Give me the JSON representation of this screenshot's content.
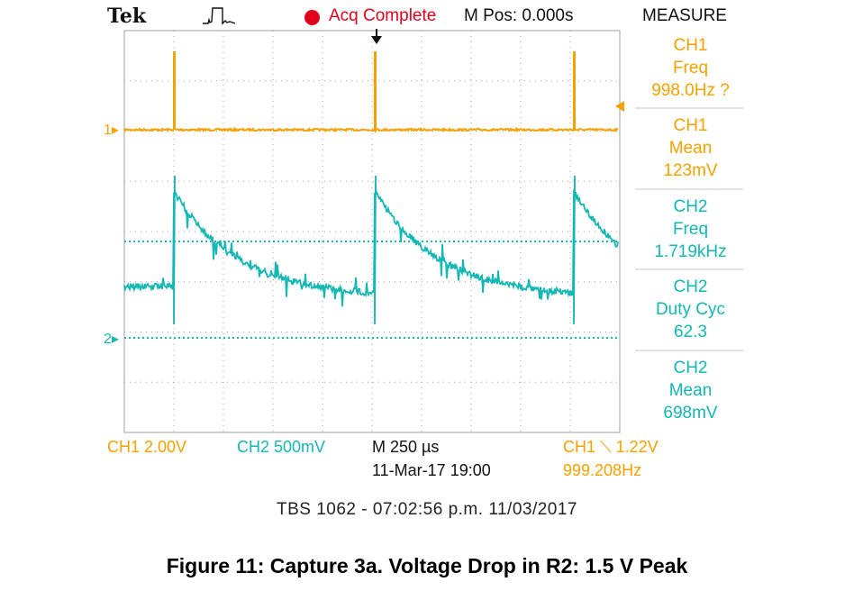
{
  "colors": {
    "ch1": "#f5a100",
    "ch2": "#13b7b4",
    "acq_dot": "#e0001b",
    "acq_text": "#e0001b",
    "grid": "#a0a0a0",
    "separator": "#c8c8c8"
  },
  "header": {
    "brand": "Tek",
    "trigger_icon": "pulse-trigger-icon",
    "acq_status": "Acq Complete",
    "m_pos": "M Pos: 0.000s",
    "measure_title": "MEASURE"
  },
  "measurements": [
    {
      "channel": "CH1",
      "type": "Freq",
      "value": "998.0Hz ?",
      "color": "#f5a100"
    },
    {
      "channel": "CH1",
      "type": "Mean",
      "value": "123mV",
      "color": "#f5a100"
    },
    {
      "channel": "CH2",
      "type": "Freq",
      "value": "1.719kHz",
      "color": "#13b7b4"
    },
    {
      "channel": "CH2",
      "type": "Duty Cyc",
      "value": "62.3",
      "color": "#13b7b4"
    },
    {
      "channel": "CH2",
      "type": "Mean",
      "value": "698mV",
      "color": "#13b7b4"
    }
  ],
  "markers": {
    "ch1": "1",
    "ch2": "2"
  },
  "footer": {
    "ch1_scale": "CH1  2.00V",
    "ch2_scale": "CH2  500mV",
    "timebase": "M 250 µs",
    "datetime": "11-Mar-17 19:00",
    "trigger": "CH1 ⟍ 1.22V",
    "trigger_freq": "999.208Hz"
  },
  "caption": "TBS 1062 - 07:02:56 p.m.   11/03/2017",
  "figure_title": "Figure 11: Capture 3a. Voltage Drop in R2: 1.5 V Peak"
}
